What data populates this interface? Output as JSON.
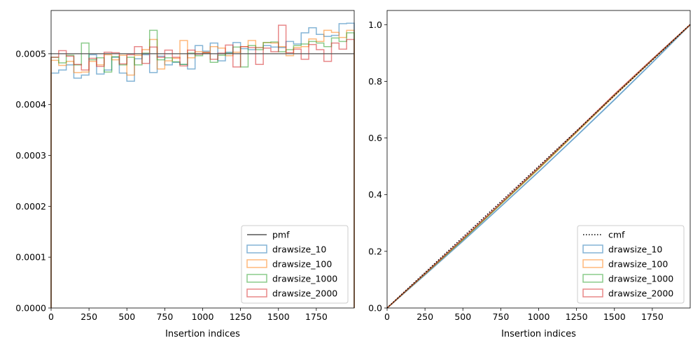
{
  "chart_data": [
    {
      "type": "histogram-step",
      "xlabel": "Insertion indices",
      "ylabel": "",
      "title": "",
      "xlim": [
        0,
        2000
      ],
      "ylim": [
        0,
        0.000585
      ],
      "xticks": [
        0,
        250,
        500,
        750,
        1000,
        1250,
        1500,
        1750
      ],
      "xtick_labels": [
        "0",
        "250",
        "500",
        "750",
        "1000",
        "1250",
        "1500",
        "1750"
      ],
      "yticks": [
        0,
        0.0001,
        0.0002,
        0.0003,
        0.0004,
        0.0005
      ],
      "ytick_labels": [
        "0.0000",
        "0.0001",
        "0.0002",
        "0.0003",
        "0.0004",
        "0.0005"
      ],
      "legend_position": "lower-right",
      "reference": {
        "name": "pmf",
        "value": 0.0005,
        "color": "#555555"
      },
      "bin_edges": [
        0,
        50,
        100,
        150,
        200,
        250,
        300,
        350,
        400,
        450,
        500,
        550,
        600,
        650,
        700,
        750,
        800,
        850,
        900,
        950,
        1000,
        1050,
        1100,
        1150,
        1200,
        1250,
        1300,
        1350,
        1400,
        1450,
        1500,
        1550,
        1600,
        1650,
        1700,
        1750,
        1800,
        1850,
        1900,
        1950,
        2000
      ],
      "series": [
        {
          "name": "drawsize_10",
          "color": "#1f77b4",
          "values": [
            0.000462,
            0.000468,
            0.000478,
            0.000452,
            0.000458,
            0.000498,
            0.00046,
            0.000468,
            0.000493,
            0.000462,
            0.000446,
            0.00049,
            0.000498,
            0.000463,
            0.000495,
            0.000478,
            0.000483,
            0.000479,
            0.00047,
            0.000516,
            0.000505,
            0.000521,
            0.000486,
            0.000503,
            0.000522,
            0.00051,
            0.000508,
            0.000512,
            0.000516,
            0.000513,
            0.000512,
            0.000524,
            0.000519,
            0.000541,
            0.000551,
            0.000538,
            0.000534,
            0.000536,
            0.000559,
            0.00056
          ]
        },
        {
          "name": "drawsize_100",
          "color": "#ff7f0e",
          "values": [
            0.000487,
            0.000477,
            0.000485,
            0.000463,
            0.000464,
            0.000485,
            0.000478,
            0.000498,
            0.000488,
            0.000497,
            0.000458,
            0.000497,
            0.000508,
            0.000528,
            0.00047,
            0.000486,
            0.000491,
            0.000526,
            0.000492,
            0.000504,
            0.000503,
            0.000514,
            0.000511,
            0.000496,
            0.000503,
            0.000514,
            0.000526,
            0.000512,
            0.000522,
            0.000521,
            0.000514,
            0.000496,
            0.000512,
            0.000514,
            0.000529,
            0.000524,
            0.000546,
            0.000542,
            0.000532,
            0.000546
          ]
        },
        {
          "name": "drawsize_1000",
          "color": "#2ca02c",
          "values": [
            0.000493,
            0.000482,
            0.000497,
            0.000478,
            0.000521,
            0.000488,
            0.000492,
            0.000464,
            0.000494,
            0.000478,
            0.000493,
            0.000478,
            0.000501,
            0.000546,
            0.000488,
            0.000492,
            0.000484,
            0.000479,
            0.000501,
            0.000496,
            0.000501,
            0.000483,
            0.000497,
            0.000501,
            0.000513,
            0.000474,
            0.000516,
            0.000508,
            0.000522,
            0.000523,
            0.000504,
            0.000508,
            0.000516,
            0.000519,
            0.000524,
            0.000521,
            0.000514,
            0.000531,
            0.000524,
            0.000541
          ]
        },
        {
          "name": "drawsize_2000",
          "color": "#d62728",
          "values": [
            0.000493,
            0.000506,
            0.000495,
            0.000479,
            0.000468,
            0.000491,
            0.000475,
            0.000503,
            0.000502,
            0.00048,
            0.000498,
            0.000514,
            0.000481,
            0.000513,
            0.000493,
            0.000507,
            0.000493,
            0.000476,
            0.000507,
            0.000499,
            0.000502,
            0.000489,
            0.000501,
            0.000517,
            0.000474,
            0.000514,
            0.000512,
            0.000479,
            0.000511,
            0.000504,
            0.000556,
            0.000502,
            0.000509,
            0.000489,
            0.000518,
            0.000508,
            0.000485,
            0.000521,
            0.000509,
            0.000528
          ]
        }
      ]
    },
    {
      "type": "line",
      "xlabel": "Insertion indices",
      "ylabel": "",
      "title": "",
      "xlim": [
        0,
        2000
      ],
      "ylim": [
        0,
        1.05
      ],
      "xticks": [
        0,
        250,
        500,
        750,
        1000,
        1250,
        1500,
        1750
      ],
      "xtick_labels": [
        "0",
        "250",
        "500",
        "750",
        "1000",
        "1250",
        "1500",
        "1750"
      ],
      "yticks": [
        0,
        0.2,
        0.4,
        0.6,
        0.8,
        1.0
      ],
      "ytick_labels": [
        "0.0",
        "0.2",
        "0.4",
        "0.6",
        "0.8",
        "1.0"
      ],
      "legend_position": "lower-right",
      "reference": {
        "name": "cmf",
        "x": [
          0,
          2000
        ],
        "y": [
          0,
          1.0
        ],
        "color": "#000000"
      },
      "series": [
        {
          "name": "drawsize_10",
          "color": "#1f77b4",
          "x": [
            0,
            250,
            500,
            750,
            1000,
            1250,
            1500,
            1750,
            2000
          ],
          "y": [
            0,
            0.117,
            0.236,
            0.358,
            0.481,
            0.607,
            0.735,
            0.866,
            1.0
          ]
        },
        {
          "name": "drawsize_100",
          "color": "#ff7f0e",
          "x": [
            0,
            250,
            500,
            750,
            1000,
            1250,
            1500,
            1750,
            2000
          ],
          "y": [
            0,
            0.12,
            0.241,
            0.366,
            0.491,
            0.62,
            0.749,
            0.875,
            1.0
          ]
        },
        {
          "name": "drawsize_1000",
          "color": "#2ca02c",
          "x": [
            0,
            250,
            500,
            750,
            1000,
            1250,
            1500,
            1750,
            2000
          ],
          "y": [
            0,
            0.121,
            0.242,
            0.367,
            0.493,
            0.622,
            0.752,
            0.877,
            1.0
          ]
        },
        {
          "name": "drawsize_2000",
          "color": "#d62728",
          "x": [
            0,
            250,
            500,
            750,
            1000,
            1250,
            1500,
            1750,
            2000
          ],
          "y": [
            0,
            0.122,
            0.245,
            0.37,
            0.496,
            0.624,
            0.754,
            0.878,
            1.0
          ]
        }
      ]
    }
  ]
}
